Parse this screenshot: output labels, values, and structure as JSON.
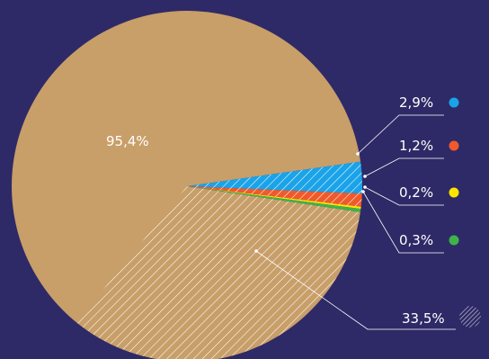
{
  "chart_data": {
    "type": "pie",
    "title": "",
    "slices": [
      {
        "label": "95,4%",
        "value": 95.4,
        "color": "#c89e69"
      },
      {
        "label": "2,9%",
        "value": 2.9,
        "color": "#1aa3e8"
      },
      {
        "label": "1,2%",
        "value": 1.2,
        "color": "#f05a2a"
      },
      {
        "label": "0,2%",
        "value": 0.2,
        "color": "#ffe400"
      },
      {
        "label": "0,3%",
        "value": 0.3,
        "color": "#3fb24a"
      }
    ],
    "hatched_overlays": [
      {
        "label": "33,5%",
        "value": 33.5,
        "applies_to": "95,4%"
      },
      {
        "applies_to": "2,9%"
      },
      {
        "applies_to": "1,2%"
      }
    ],
    "background": "#2e2a67",
    "legend": "right"
  }
}
